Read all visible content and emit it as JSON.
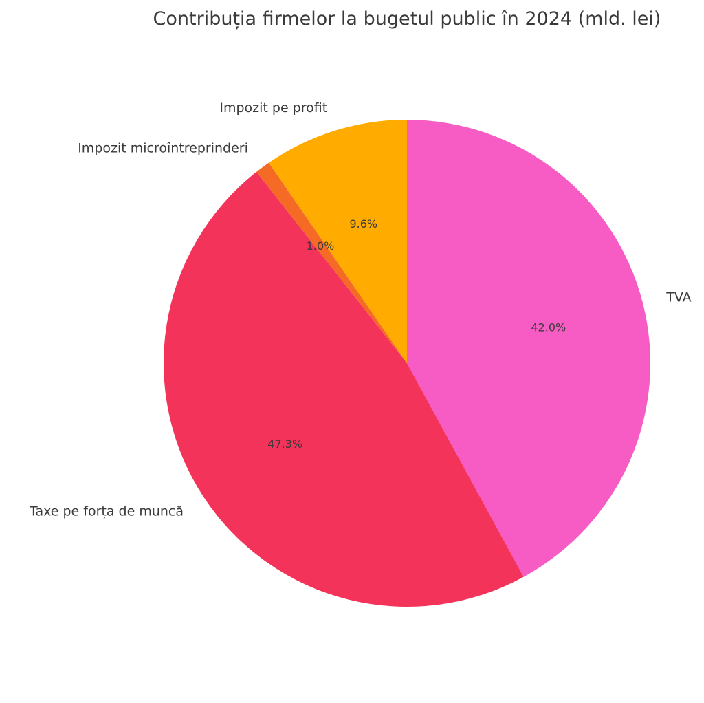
{
  "chart_data": {
    "type": "pie",
    "title": "Contribuția firmelor la bugetul public în 2024 (mld. lei)",
    "slices": [
      {
        "label": "TVA",
        "percent": 42.0,
        "percent_label": "42.0%",
        "color": "#f75cc5"
      },
      {
        "label": "Taxe pe forța de muncă",
        "percent": 47.3,
        "percent_label": "47.3%",
        "color": "#f4335b"
      },
      {
        "label": "Impozit microîntreprinderi",
        "percent": 1.0,
        "percent_label": "1.0%",
        "color": "#f56b26"
      },
      {
        "label": "Impozit pe profit",
        "percent": 9.6,
        "percent_label": "9.6%",
        "color": "#ffab00"
      }
    ],
    "start_angle_deg": 90,
    "direction": "clockwise",
    "legend": "none"
  }
}
